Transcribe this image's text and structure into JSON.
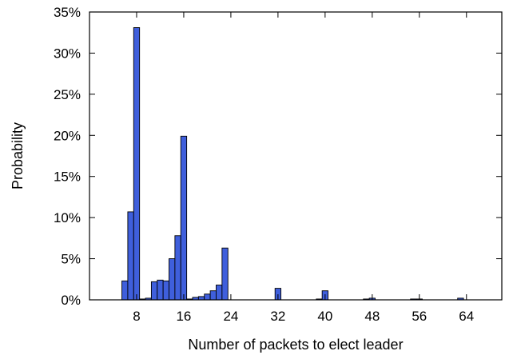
{
  "chart_data": {
    "type": "bar",
    "title": "",
    "xlabel": "Number of packets to elect leader",
    "ylabel": "Probability",
    "xlim": [
      0,
      70
    ],
    "ylim": [
      0,
      35
    ],
    "x_ticks": [
      8,
      16,
      24,
      32,
      40,
      48,
      56,
      64
    ],
    "x_tick_labels": [
      "8",
      "16",
      "24",
      "32",
      "40",
      "48",
      "56",
      "64"
    ],
    "y_ticks": [
      0,
      5,
      10,
      15,
      20,
      25,
      30,
      35
    ],
    "y_tick_labels": [
      "0%",
      "5%",
      "10%",
      "15%",
      "20%",
      "25%",
      "30%",
      "35%"
    ],
    "grid": false,
    "bar_color": "#3f5fdc",
    "series": [
      {
        "x": [
          6,
          7,
          8,
          9,
          10,
          11,
          12,
          13,
          14,
          15,
          16,
          17,
          18,
          19,
          20,
          21,
          22,
          23,
          24,
          32,
          39,
          40,
          47,
          48,
          55,
          56,
          63
        ],
        "values": [
          2.3,
          10.7,
          33.1,
          0.1,
          0.2,
          2.2,
          2.4,
          2.3,
          5.0,
          7.8,
          19.9,
          0.1,
          0.3,
          0.4,
          0.7,
          1.1,
          1.8,
          6.3,
          0.0,
          1.4,
          0.1,
          1.1,
          0.1,
          0.2,
          0.1,
          0.1,
          0.2
        ]
      }
    ]
  }
}
